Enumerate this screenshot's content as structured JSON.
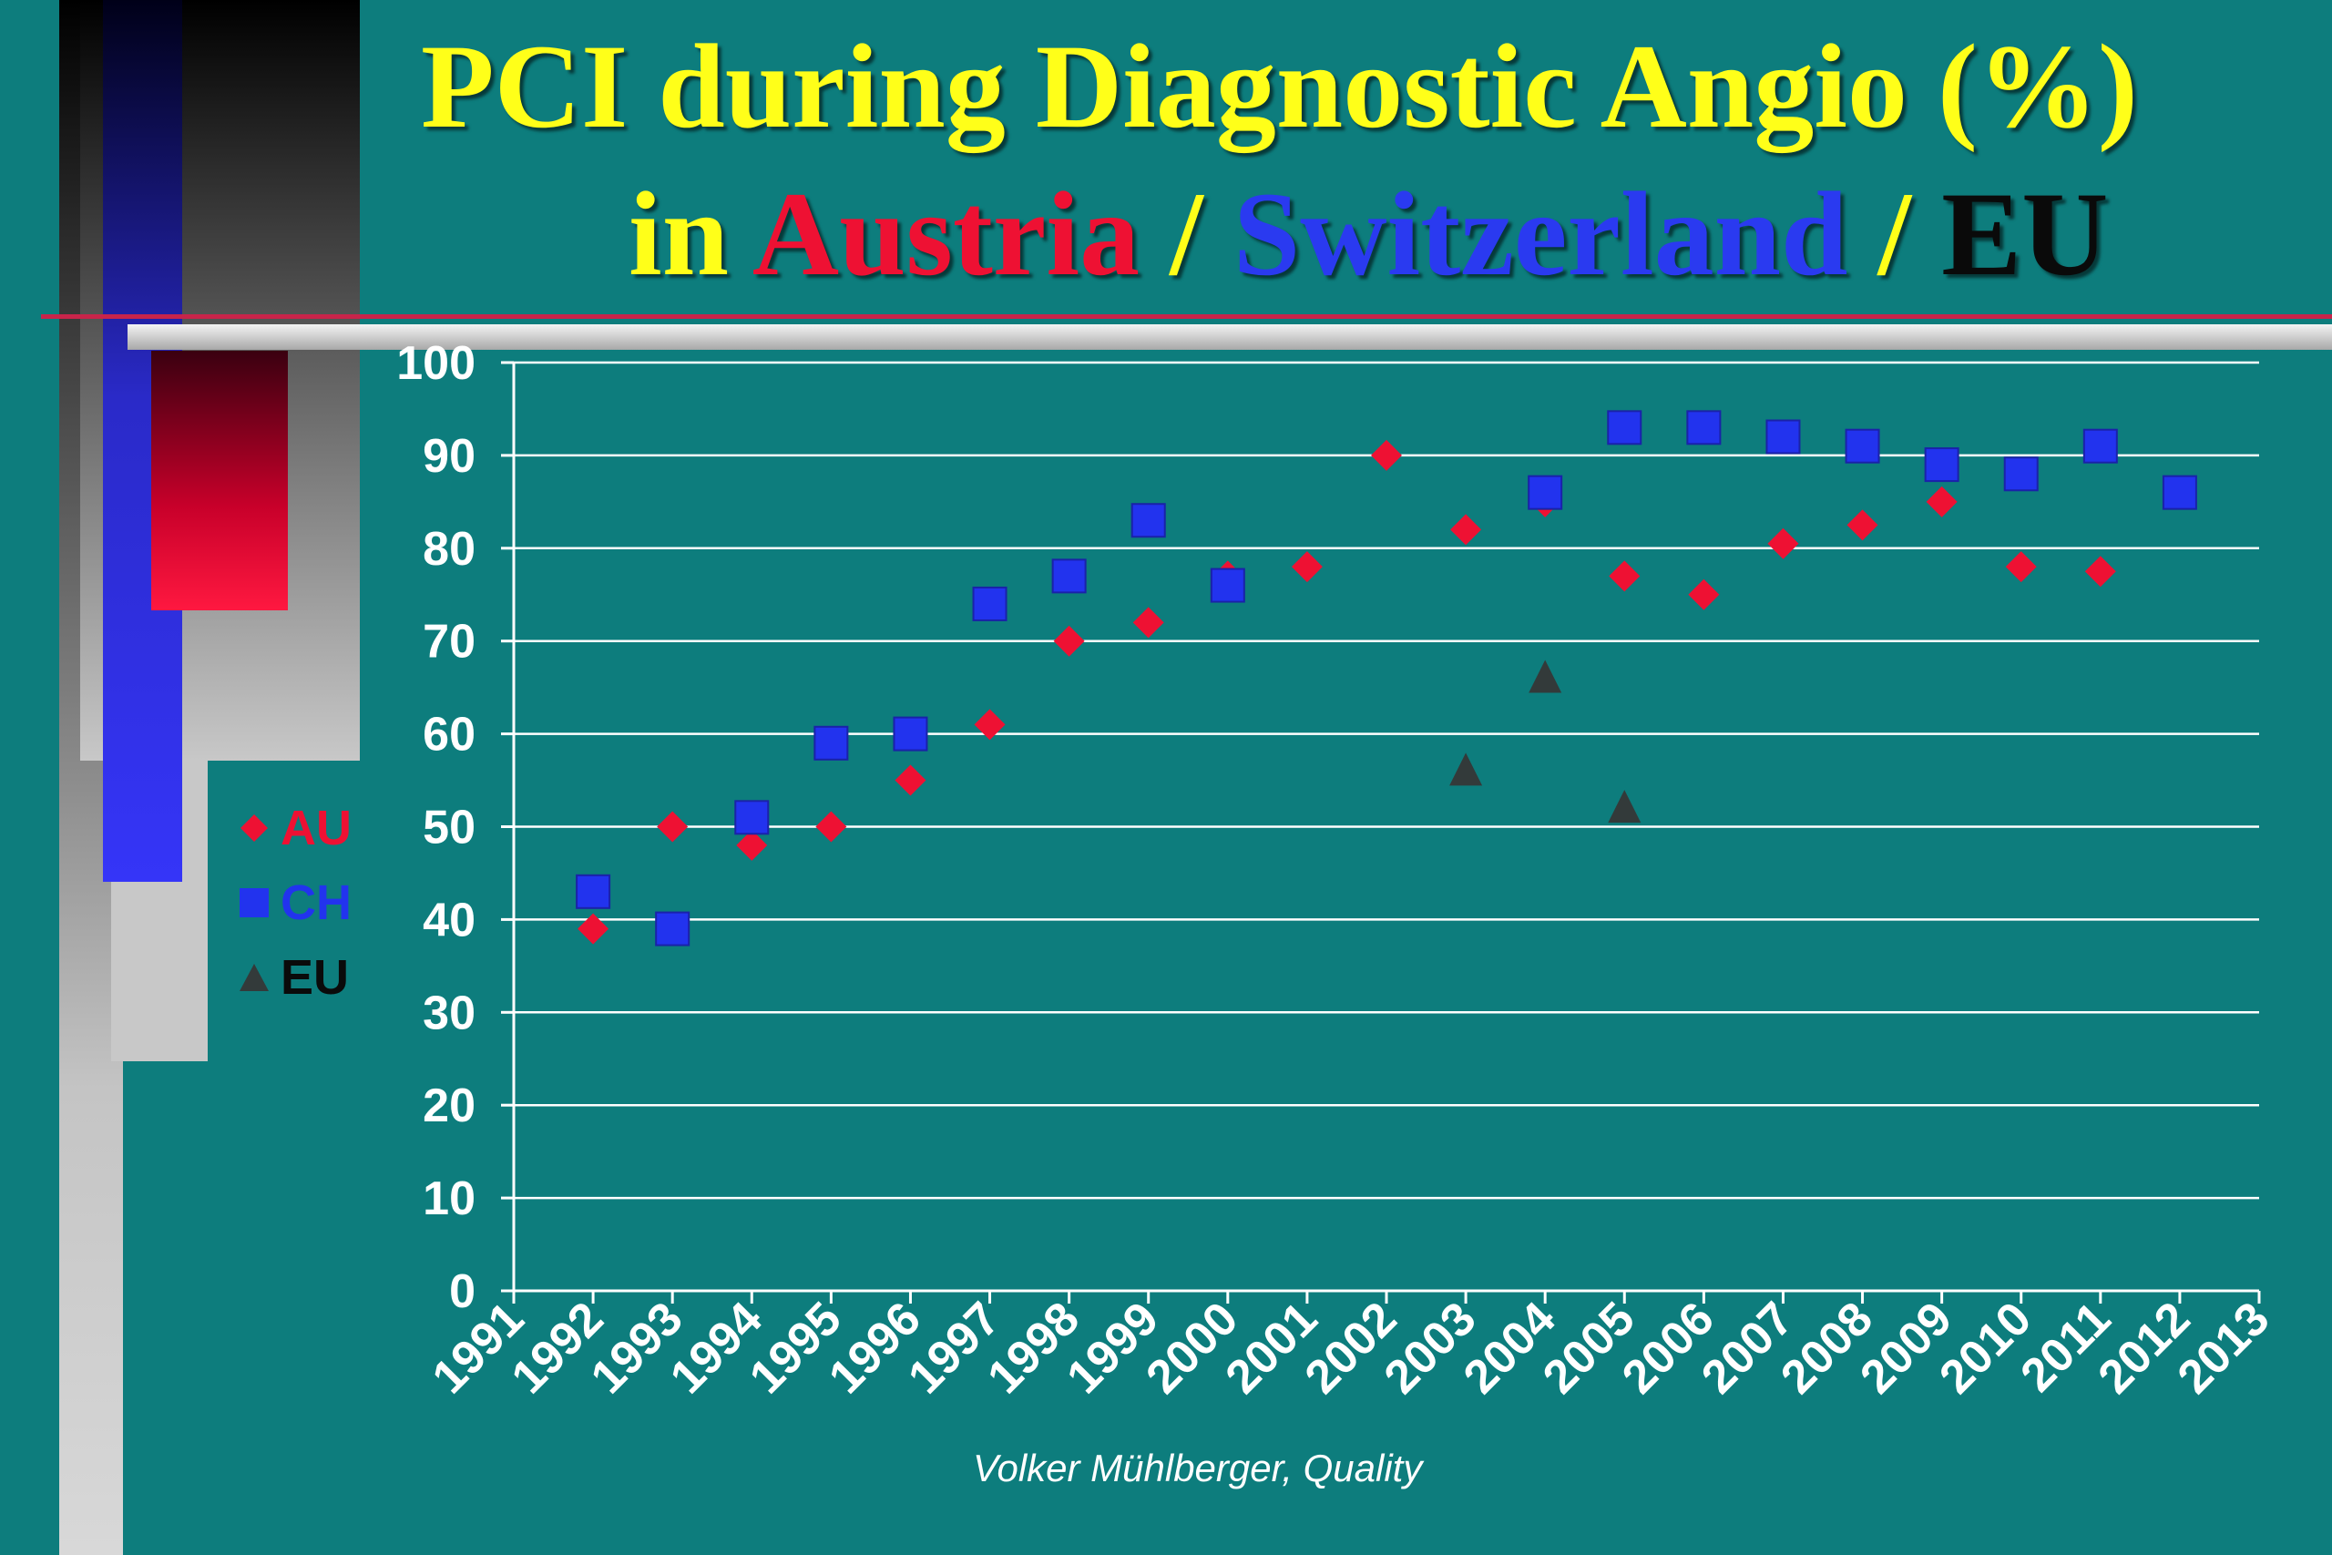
{
  "title": {
    "line1": "PCI during Diagnostic Angio (%)",
    "line2_in": "in ",
    "line2_austria": "Austria",
    "line2_sep1": " / ",
    "line2_switzerland": "Switzerland",
    "line2_sep2": " / ",
    "line2_eu": "EU"
  },
  "credit": "Volker Mühlberger, Quality",
  "colors": {
    "background": "#0d7d7d",
    "title_yellow": "#ffff19",
    "austria_red": "#ee1133",
    "switzerland_blue": "#2233ee",
    "eu_dark": "#333a3a",
    "grid": "#ffffff"
  },
  "chart_data": {
    "type": "scatter",
    "title": "PCI during Diagnostic Angio (%)",
    "xlabel": "",
    "ylabel": "",
    "xlim": [
      1991,
      2013
    ],
    "ylim": [
      0,
      100
    ],
    "x_ticks": [
      1991,
      1992,
      1993,
      1994,
      1995,
      1996,
      1997,
      1998,
      1999,
      2000,
      2001,
      2002,
      2003,
      2004,
      2005,
      2006,
      2007,
      2008,
      2009,
      2010,
      2011,
      2012,
      2013
    ],
    "y_ticks": [
      0,
      10,
      20,
      30,
      40,
      50,
      60,
      70,
      80,
      90,
      100
    ],
    "grid": "horizontal",
    "legend_position": "left",
    "series": [
      {
        "name": "AU",
        "marker": "diamond",
        "color": "#ee1133",
        "points": [
          [
            1992,
            39
          ],
          [
            1993,
            50
          ],
          [
            1994,
            48
          ],
          [
            1995,
            50
          ],
          [
            1996,
            55
          ],
          [
            1997,
            61
          ],
          [
            1998,
            70
          ],
          [
            1999,
            72
          ],
          [
            2000,
            77
          ],
          [
            2001,
            78
          ],
          [
            2002,
            90
          ],
          [
            2003,
            82
          ],
          [
            2004,
            85
          ],
          [
            2005,
            77
          ],
          [
            2006,
            75
          ],
          [
            2007,
            80.5
          ],
          [
            2008,
            82.5
          ],
          [
            2009,
            85
          ],
          [
            2010,
            78
          ],
          [
            2011,
            77.5
          ]
        ]
      },
      {
        "name": "CH",
        "marker": "square",
        "color": "#2233ee",
        "points": [
          [
            1992,
            43
          ],
          [
            1993,
            39
          ],
          [
            1994,
            51
          ],
          [
            1995,
            59
          ],
          [
            1996,
            60
          ],
          [
            1997,
            74
          ],
          [
            1998,
            77
          ],
          [
            1999,
            83
          ],
          [
            2000,
            76
          ],
          [
            2004,
            86
          ],
          [
            2005,
            93
          ],
          [
            2006,
            93
          ],
          [
            2007,
            92
          ],
          [
            2008,
            91
          ],
          [
            2009,
            89
          ],
          [
            2010,
            88
          ],
          [
            2011,
            91
          ],
          [
            2012,
            86
          ]
        ]
      },
      {
        "name": "EU",
        "marker": "triangle",
        "color": "#333a3a",
        "points": [
          [
            2003,
            56
          ],
          [
            2004,
            66
          ],
          [
            2005,
            52
          ]
        ]
      }
    ]
  }
}
